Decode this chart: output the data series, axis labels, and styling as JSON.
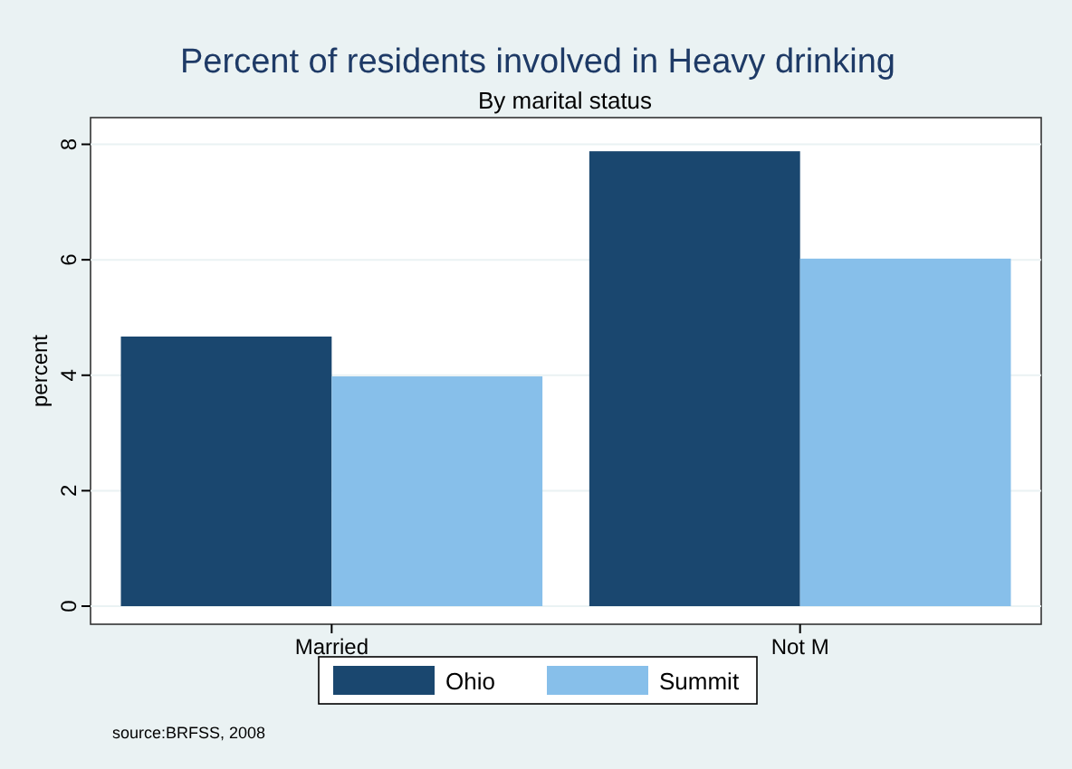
{
  "chart_data": {
    "type": "bar",
    "title": "Percent of residents involved in Heavy drinking",
    "subtitle": "By marital status",
    "ylabel": "percent",
    "categories": [
      "Married",
      "Not M"
    ],
    "series": [
      {
        "name": "Ohio",
        "color": "#1a476f",
        "values": [
          4.67,
          7.88
        ]
      },
      {
        "name": "Summit",
        "color": "#87bfea",
        "values": [
          3.98,
          6.02
        ]
      }
    ],
    "ylim": [
      0,
      8.4
    ],
    "yticks": [
      0,
      2,
      4,
      6,
      8
    ],
    "grid": "y",
    "legend": "bottom",
    "annotations": [
      "source:BRFSS, 2008"
    ]
  }
}
